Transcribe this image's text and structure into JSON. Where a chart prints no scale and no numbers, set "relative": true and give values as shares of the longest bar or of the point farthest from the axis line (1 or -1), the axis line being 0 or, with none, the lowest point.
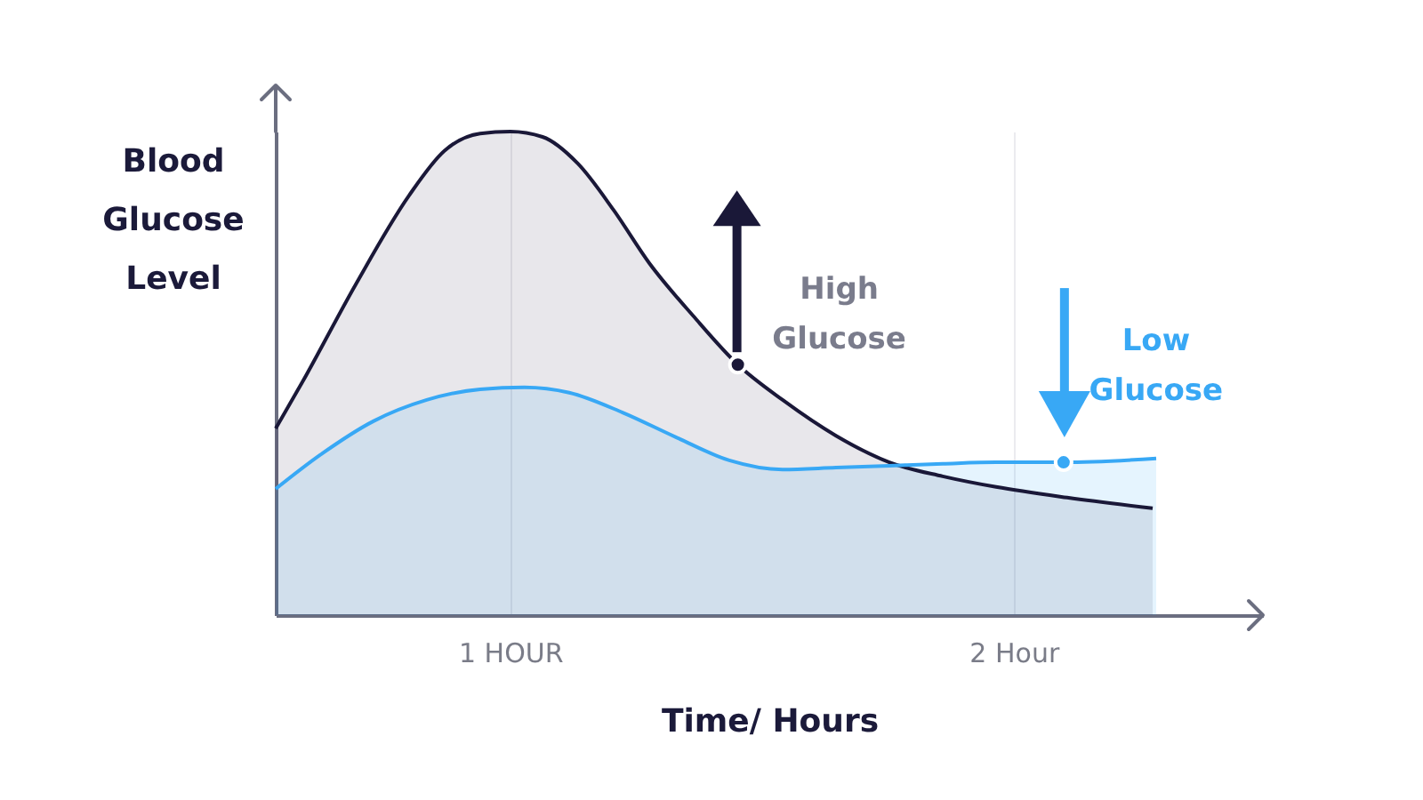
{
  "chart_data": {
    "type": "area",
    "relative": true,
    "ylabel": "Blood Glucose Level",
    "xlabel": "Time/ Hours",
    "xlim": [
      0.534,
      2.495
    ],
    "xticks": [
      {
        "value": 1,
        "label": "1 HOUR"
      },
      {
        "value": 2,
        "label": "2 Hour"
      }
    ],
    "grid": "x",
    "series": [
      {
        "color": "#1a1838",
        "x": [
          0.534,
          0.587,
          0.693,
          0.799,
          0.869,
          0.94,
          1.0,
          1.064,
          1.134,
          1.205,
          1.276,
          1.364,
          1.452,
          1.541,
          1.647,
          1.753,
          1.859,
          1.965,
          2.106,
          2.276
        ],
        "values": [
          0.386,
          0.482,
          0.684,
          0.868,
          0.96,
          0.996,
          1,
          0.989,
          0.934,
          0.838,
          0.728,
          0.618,
          0.518,
          0.445,
          0.371,
          0.316,
          0.287,
          0.265,
          0.243,
          0.221
        ]
      },
      {
        "color": "#38a8f5",
        "x": [
          0.534,
          0.622,
          0.728,
          0.834,
          0.94,
          1.028,
          1.117,
          1.223,
          1.329,
          1.435,
          1.541,
          1.647,
          1.753,
          1.859,
          1.965,
          2.099,
          2.283
        ],
        "values": [
          0.261,
          0.331,
          0.401,
          0.445,
          0.467,
          0.471,
          0.46,
          0.419,
          0.368,
          0.32,
          0.301,
          0.305,
          0.309,
          0.313,
          0.316,
          0.316,
          0.324
        ]
      }
    ],
    "annotations": [
      {
        "text": "High Glucose",
        "x": 1.452,
        "y": 0.518
      },
      {
        "text": "Low Glucose",
        "x": 2.099,
        "y": 0.316
      }
    ]
  }
}
